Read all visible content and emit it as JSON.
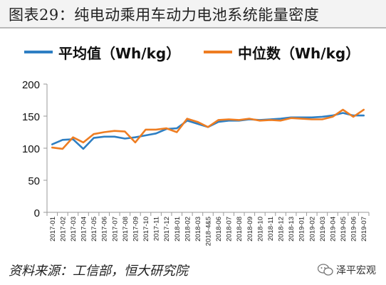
{
  "figure": {
    "title": "图表29：纯电动乘用车动力电池系统能量密度",
    "source": "资料来源：工信部，恒大研究院",
    "watermark": "泽平宏观"
  },
  "colors": {
    "series_1": "#2e7fc3",
    "series_2": "#ee7d22"
  },
  "chart_data": {
    "type": "line",
    "title": "",
    "xlabel": "",
    "ylabel": "",
    "ylim": [
      0,
      200
    ],
    "yticks": [
      0,
      50,
      100,
      150,
      200
    ],
    "grid": false,
    "legend_position": "top",
    "x": [
      "2017-01",
      "2017-02",
      "2017-03",
      "2017-04",
      "2017-05",
      "2017-06",
      "2017-07",
      "2017-08",
      "2017-09",
      "2017-10",
      "2017-11",
      "2017-12",
      "2018-01",
      "2018-02",
      "2018-03",
      "2018-4&5",
      "2018-06",
      "2018-07",
      "2018-08",
      "2018-09",
      "2018-10",
      "2018-11",
      "2018-12",
      "2018-13",
      "2019-01",
      "2019-02",
      "2019-03",
      "2019-04",
      "2019-05",
      "2019-06",
      "2019-07"
    ],
    "series": [
      {
        "name": "平均值（Wh/kg）",
        "values": [
          106,
          113,
          114,
          99,
          116,
          118,
          118,
          115,
          117,
          120,
          123,
          130,
          131,
          143,
          138,
          133,
          141,
          143,
          143,
          145,
          144,
          145,
          146,
          148,
          148,
          148,
          149,
          151,
          155,
          151,
          151
        ]
      },
      {
        "name": "中位数（Wh/kg）",
        "values": [
          101,
          99,
          117,
          109,
          122,
          125,
          127,
          126,
          109,
          129,
          129,
          131,
          125,
          146,
          141,
          133,
          144,
          145,
          144,
          146,
          143,
          144,
          143,
          147,
          146,
          145,
          145,
          149,
          160,
          149,
          160
        ]
      }
    ]
  }
}
